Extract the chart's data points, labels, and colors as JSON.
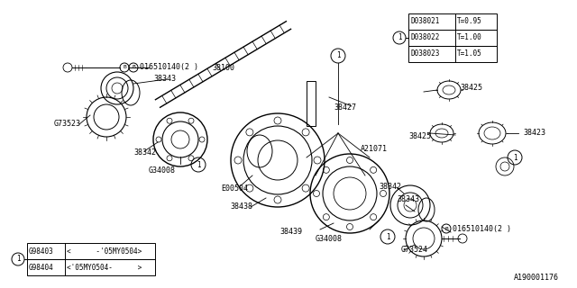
{
  "bg_color": "#ffffff",
  "line_color": "#000000",
  "title_label": "A190001176",
  "top_table_rows": [
    [
      "D038021",
      "T=0.95"
    ],
    [
      "D038022",
      "T=1.00"
    ],
    [
      "D038023",
      "T=1.05"
    ]
  ],
  "bottom_table_rows": [
    [
      "G98403",
      "<      -'05MY0504>"
    ],
    [
      "G98404",
      "<'05MY0504-      >"
    ]
  ]
}
